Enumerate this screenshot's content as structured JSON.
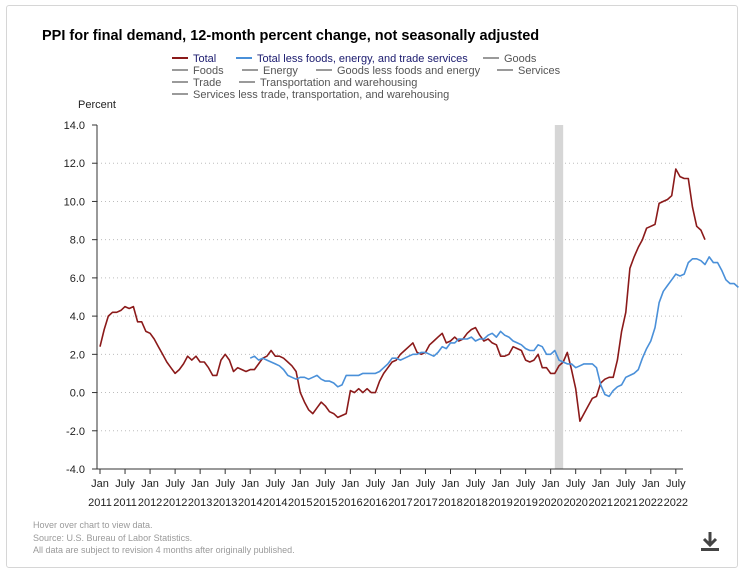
{
  "title": "PPI for final demand, 12-month percent change, not seasonally adjusted",
  "legend": [
    {
      "label": "Total",
      "color": "#8b1a1a",
      "active": true
    },
    {
      "label": "Total less foods, energy, and trade services",
      "color": "#4a90d9",
      "active": true
    },
    {
      "label": "Goods",
      "color": "#9a9a9a",
      "active": false
    },
    {
      "label": "Foods",
      "color": "#9a9a9a",
      "active": false
    },
    {
      "label": "Energy",
      "color": "#9a9a9a",
      "active": false
    },
    {
      "label": "Goods less foods and energy",
      "color": "#9a9a9a",
      "active": false
    },
    {
      "label": "Services",
      "color": "#9a9a9a",
      "active": false
    },
    {
      "label": "Trade",
      "color": "#9a9a9a",
      "active": false
    },
    {
      "label": "Transportation and warehousing",
      "color": "#9a9a9a",
      "active": false
    },
    {
      "label": "Services less trade, transportation, and warehousing",
      "color": "#9a9a9a",
      "active": false
    }
  ],
  "footer": {
    "hover": "Hover over chart to view data.",
    "source": "Source: U.S. Bureau of Labor Statistics.",
    "note": "All data are subject to revision 4 months after originally published."
  },
  "download_icon": "download-icon",
  "chart_data": {
    "type": "line",
    "ylabel": "Percent",
    "ylim": [
      -4.0,
      14.0
    ],
    "yticks": [
      "14.0",
      "12.0",
      "10.0",
      "8.0",
      "6.0",
      "4.0",
      "2.0",
      "0.0",
      "-2.0",
      "-4.0"
    ],
    "xrange": [
      "2011-01",
      "2022-08"
    ],
    "xticks": [
      {
        "month": "Jan",
        "year": "2011"
      },
      {
        "month": "July",
        "year": "2011"
      },
      {
        "month": "Jan",
        "year": "2012"
      },
      {
        "month": "July",
        "year": "2012"
      },
      {
        "month": "Jan",
        "year": "2013"
      },
      {
        "month": "July",
        "year": "2013"
      },
      {
        "month": "Jan",
        "year": "2014"
      },
      {
        "month": "July",
        "year": "2014"
      },
      {
        "month": "Jan",
        "year": "2015"
      },
      {
        "month": "July",
        "year": "2015"
      },
      {
        "month": "Jan",
        "year": "2016"
      },
      {
        "month": "July",
        "year": "2016"
      },
      {
        "month": "Jan",
        "year": "2017"
      },
      {
        "month": "July",
        "year": "2017"
      },
      {
        "month": "Jan",
        "year": "2018"
      },
      {
        "month": "July",
        "year": "2018"
      },
      {
        "month": "Jan",
        "year": "2019"
      },
      {
        "month": "July",
        "year": "2019"
      },
      {
        "month": "Jan",
        "year": "2020"
      },
      {
        "month": "July",
        "year": "2020"
      },
      {
        "month": "Jan",
        "year": "2021"
      },
      {
        "month": "July",
        "year": "2021"
      },
      {
        "month": "Jan",
        "year": "2022"
      },
      {
        "month": "July",
        "year": "2022"
      }
    ],
    "grid": true,
    "recession_band": {
      "start": "2020-02",
      "end": "2020-04"
    },
    "series": [
      {
        "name": "Total",
        "color": "#8b1a1a",
        "start": "2011-01",
        "values": [
          2.4,
          3.3,
          4.0,
          4.2,
          4.2,
          4.3,
          4.5,
          4.4,
          4.5,
          3.7,
          3.7,
          3.2,
          3.1,
          2.8,
          2.4,
          2.0,
          1.6,
          1.3,
          1.0,
          1.2,
          1.5,
          1.9,
          1.7,
          1.9,
          1.6,
          1.6,
          1.3,
          0.9,
          0.9,
          1.7,
          2.0,
          1.7,
          1.1,
          1.3,
          1.2,
          1.1,
          1.2,
          1.2,
          1.5,
          1.8,
          1.9,
          2.2,
          1.9,
          1.9,
          1.8,
          1.6,
          1.4,
          1.1,
          0.0,
          -0.5,
          -0.9,
          -1.1,
          -0.8,
          -0.5,
          -0.7,
          -1.0,
          -1.1,
          -1.3,
          -1.2,
          -1.1,
          0.1,
          0.0,
          0.2,
          0.0,
          0.2,
          0.0,
          0.0,
          0.6,
          1.0,
          1.3,
          1.6,
          1.7,
          2.0,
          2.2,
          2.4,
          2.6,
          2.1,
          2.0,
          2.1,
          2.5,
          2.7,
          2.9,
          3.1,
          2.6,
          2.7,
          2.9,
          2.7,
          2.8,
          3.1,
          3.3,
          3.4,
          3.0,
          2.7,
          2.8,
          2.6,
          2.5,
          1.9,
          1.9,
          2.0,
          2.4,
          2.3,
          2.2,
          1.7,
          1.6,
          1.7,
          2.0,
          1.3,
          1.3,
          1.0,
          1.0,
          1.4,
          1.6,
          2.1,
          1.2,
          0.2,
          -1.5,
          -1.1,
          -0.7,
          -0.3,
          -0.2,
          0.5,
          0.7,
          0.8,
          0.8,
          1.7,
          3.2,
          4.2,
          6.5,
          7.1,
          7.6,
          8.0,
          8.6,
          8.7,
          8.8,
          9.9,
          10.0,
          10.1,
          10.3,
          11.7,
          11.3,
          11.2,
          11.2,
          9.7,
          8.7,
          8.5,
          8.0
        ]
      },
      {
        "name": "Total less foods, energy, and trade services",
        "color": "#4a90d9",
        "start": "2014-01",
        "values": [
          1.8,
          1.9,
          1.7,
          1.8,
          1.7,
          1.6,
          1.5,
          1.4,
          1.2,
          0.9,
          0.8,
          0.7,
          0.8,
          0.8,
          0.7,
          0.8,
          0.9,
          0.7,
          0.6,
          0.6,
          0.5,
          0.3,
          0.4,
          0.9,
          0.9,
          0.9,
          0.9,
          1.0,
          1.0,
          1.0,
          1.0,
          1.1,
          1.3,
          1.5,
          1.8,
          1.8,
          1.7,
          1.8,
          1.9,
          2.0,
          2.0,
          2.1,
          2.1,
          2.0,
          1.9,
          2.1,
          2.4,
          2.3,
          2.6,
          2.6,
          2.8,
          2.8,
          2.8,
          2.9,
          2.7,
          2.8,
          2.8,
          3.0,
          3.1,
          2.9,
          3.2,
          3.0,
          2.9,
          2.7,
          2.6,
          2.5,
          2.3,
          2.2,
          2.2,
          2.5,
          2.4,
          2.0,
          2.0,
          2.2,
          1.7,
          1.6,
          1.5,
          1.5,
          1.3,
          1.4,
          1.5,
          1.5,
          1.5,
          1.3,
          0.4,
          -0.1,
          -0.2,
          0.1,
          0.3,
          0.4,
          0.8,
          0.9,
          1.0,
          1.2,
          1.8,
          2.3,
          2.7,
          3.4,
          4.7,
          5.3,
          5.6,
          5.9,
          6.2,
          6.1,
          6.2,
          6.8,
          7.0,
          7.0,
          6.9,
          6.7,
          7.1,
          6.8,
          6.8,
          6.4,
          5.9,
          5.7,
          5.7,
          5.5
        ]
      }
    ]
  }
}
